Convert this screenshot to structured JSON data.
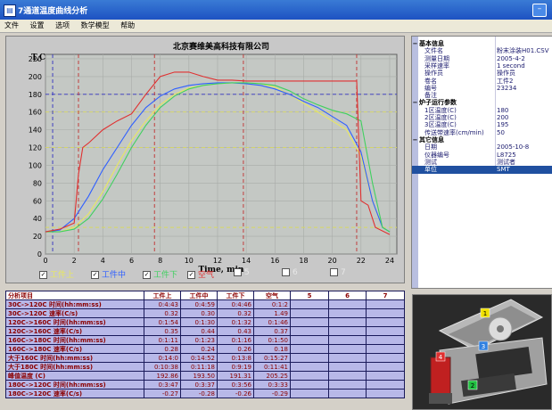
{
  "window": {
    "title": "7通道温度曲线分析",
    "icon": "app-icon"
  },
  "menu": [
    "文件",
    "设置",
    "选项",
    "数学模型",
    "帮助"
  ],
  "chart_data": {
    "type": "line",
    "title": "北京赛维美高科技有限公司",
    "ylabel": "T,C",
    "xlabel": "Time, min",
    "xlim": [
      0,
      24.5
    ],
    "ylim": [
      0,
      225
    ],
    "xticks": [
      0,
      2,
      4,
      6,
      8,
      10,
      12,
      14,
      16,
      18,
      20,
      22,
      24
    ],
    "yticks": [
      0,
      20,
      40,
      60,
      80,
      100,
      120,
      140,
      160,
      180,
      200,
      220
    ],
    "grid": true,
    "reference_lines": [
      {
        "orientation": "horizontal",
        "value": 180,
        "color": "#3030c0"
      },
      {
        "orientation": "horizontal",
        "value": 160,
        "color": "#d8d860"
      },
      {
        "orientation": "horizontal",
        "value": 120,
        "color": "#d8d860"
      },
      {
        "orientation": "horizontal",
        "value": 30,
        "color": "#d8d860"
      },
      {
        "orientation": "vertical",
        "value": 0.5,
        "color": "#3030c0"
      },
      {
        "orientation": "vertical",
        "value": 2.3,
        "color": "#c03030"
      },
      {
        "orientation": "vertical",
        "value": 7.6,
        "color": "#c03030"
      },
      {
        "orientation": "vertical",
        "value": 13.8,
        "color": "#c03030"
      },
      {
        "orientation": "vertical",
        "value": 21.7,
        "color": "#c03030"
      }
    ],
    "series": [
      {
        "name": "工件上",
        "color": "#e8e860",
        "x": [
          0,
          1,
          2,
          3,
          4,
          5,
          6,
          7,
          8,
          9,
          10,
          11,
          12,
          13,
          14,
          15,
          16,
          17,
          18,
          19,
          20,
          21,
          22,
          22.8,
          23.5,
          24
        ],
        "y": [
          25,
          25,
          30,
          45,
          70,
          100,
          128,
          150,
          168,
          180,
          187,
          190,
          192,
          193,
          193,
          192,
          188,
          180,
          170,
          160,
          150,
          140,
          110,
          60,
          30,
          25
        ]
      },
      {
        "name": "工件中",
        "color": "#3060ff",
        "x": [
          0,
          1,
          2,
          3,
          4,
          5,
          6,
          7,
          8,
          9,
          10,
          11,
          12,
          13,
          14,
          15,
          16,
          17,
          18,
          19,
          20,
          21,
          22,
          22.8,
          23.5,
          24
        ],
        "y": [
          25,
          27,
          40,
          65,
          95,
          120,
          145,
          165,
          178,
          186,
          190,
          192,
          193,
          193,
          192,
          190,
          186,
          180,
          172,
          165,
          155,
          145,
          115,
          60,
          30,
          25
        ]
      },
      {
        "name": "工件下",
        "color": "#40d060",
        "x": [
          0,
          1,
          2,
          3,
          4,
          5,
          6,
          7,
          8,
          9,
          10,
          11,
          12,
          13,
          14,
          15,
          16,
          17,
          18,
          19,
          20,
          21,
          22,
          22.8,
          23.5,
          24
        ],
        "y": [
          25,
          25,
          28,
          40,
          62,
          90,
          120,
          145,
          165,
          178,
          186,
          190,
          192,
          193,
          193,
          192,
          190,
          184,
          175,
          168,
          162,
          158,
          150,
          80,
          30,
          25
        ]
      },
      {
        "name": "空气",
        "color": "#e03030",
        "x": [
          0,
          1,
          2,
          2.3,
          2.6,
          3,
          4,
          5,
          6,
          7,
          8,
          9,
          10,
          11,
          12,
          13,
          14,
          15,
          16,
          17,
          18,
          19,
          20,
          21,
          21.7,
          22,
          22.5,
          23,
          24
        ],
        "y": [
          25,
          28,
          35,
          90,
          120,
          125,
          140,
          150,
          158,
          180,
          200,
          205,
          205,
          200,
          196,
          196,
          195,
          195,
          195,
          195,
          195,
          195,
          195,
          195,
          195,
          60,
          55,
          30,
          22
        ]
      }
    ]
  },
  "channels": [
    {
      "label": "工件上",
      "checked": true,
      "color": "#e8e860"
    },
    {
      "label": "工件中",
      "checked": true,
      "color": "#3060ff"
    },
    {
      "label": "工件下",
      "checked": true,
      "color": "#40d060"
    },
    {
      "label": "空气",
      "checked": true,
      "color": "#e03030"
    },
    {
      "label": "5",
      "checked": false,
      "color": "#e8e8e8"
    },
    {
      "label": "6",
      "checked": false,
      "color": "#e8e8e8"
    },
    {
      "label": "7",
      "checked": false,
      "color": "#e8e8e8"
    }
  ],
  "properties": [
    {
      "type": "cat",
      "key": "基本信息"
    },
    {
      "key": "文件名",
      "value": "粉末涂装H01.CSV"
    },
    {
      "key": "测量日期",
      "value": "2005-4-2"
    },
    {
      "key": "采样速率",
      "value": "1 second"
    },
    {
      "key": "操作员",
      "value": "操作员"
    },
    {
      "key": "卷名",
      "value": "工件2"
    },
    {
      "key": "编号",
      "value": "23234"
    },
    {
      "key": "备注",
      "value": ""
    },
    {
      "type": "cat",
      "key": "炉子运行参数"
    },
    {
      "key": "1区温度(C)",
      "value": "180"
    },
    {
      "key": "2区温度(C)",
      "value": "200"
    },
    {
      "key": "3区温度(C)",
      "value": "195"
    },
    {
      "key": "传送带速率(cm/min)",
      "value": "50"
    },
    {
      "type": "cat",
      "key": "其它信息"
    },
    {
      "key": "日期",
      "value": "2005-10-8"
    },
    {
      "key": "仪器编号",
      "value": "L8725"
    },
    {
      "key": "测试",
      "value": "测试者"
    },
    {
      "key": "单位",
      "value": "SMT",
      "selected": true
    }
  ],
  "analysis": {
    "headers": [
      "分析项目",
      "工件上",
      "工件中",
      "工件下",
      "空气",
      "5",
      "6",
      "7"
    ],
    "rows": [
      {
        "label": "30C->120C 时间(hh:mm:ss)",
        "values": [
          "0:4:43",
          "0:4:59",
          "0:4:46",
          "0:1:2",
          "",
          "",
          ""
        ]
      },
      {
        "label": "30C->120C 速率(C/s)",
        "values": [
          "0.32",
          "0.30",
          "0.32",
          "1.49",
          "",
          "",
          ""
        ]
      },
      {
        "label": "120C->160C 时间(hh:mm:ss)",
        "values": [
          "0:1:54",
          "0:1:30",
          "0:1:32",
          "0:1:46",
          "",
          "",
          ""
        ]
      },
      {
        "label": "120C->160C 速率(C/s)",
        "values": [
          "0.35",
          "0.44",
          "0.43",
          "0.37",
          "",
          "",
          ""
        ]
      },
      {
        "label": "160C->180C 时间(hh:mm:ss)",
        "values": [
          "0:1:11",
          "0:1:23",
          "0:1:16",
          "0:1:50",
          "",
          "",
          ""
        ]
      },
      {
        "label": "160C->180C 速率(C/s)",
        "values": [
          "0.28",
          "0.24",
          "0.26",
          "0.18",
          "",
          "",
          ""
        ]
      },
      {
        "label": "大于160C  时间(hh:mm:ss)",
        "values": [
          "0:14:0",
          "0:14:52",
          "0:13:8",
          "0:15:27",
          "",
          "",
          ""
        ]
      },
      {
        "label": "大于180C  时间(hh:mm:ss)",
        "values": [
          "0:10:38",
          "0:11:18",
          "0:9:19",
          "0:11:41",
          "",
          "",
          ""
        ]
      },
      {
        "label": "峰值温度 (C)",
        "values": [
          "192.86",
          "193.50",
          "191.31",
          "205.25",
          "",
          "",
          ""
        ]
      },
      {
        "label": "180C->120C 时间(hh:mm:ss)",
        "values": [
          "0:3:47",
          "0:3:37",
          "0:3:56",
          "0:3:33",
          "",
          "",
          ""
        ]
      },
      {
        "label": "180C->120C 速率(C/s)",
        "values": [
          "-0.27",
          "-0.28",
          "-0.26",
          "-0.29",
          "",
          "",
          ""
        ]
      }
    ]
  },
  "photo": {
    "badges": [
      "1",
      "2",
      "3",
      "4"
    ]
  }
}
